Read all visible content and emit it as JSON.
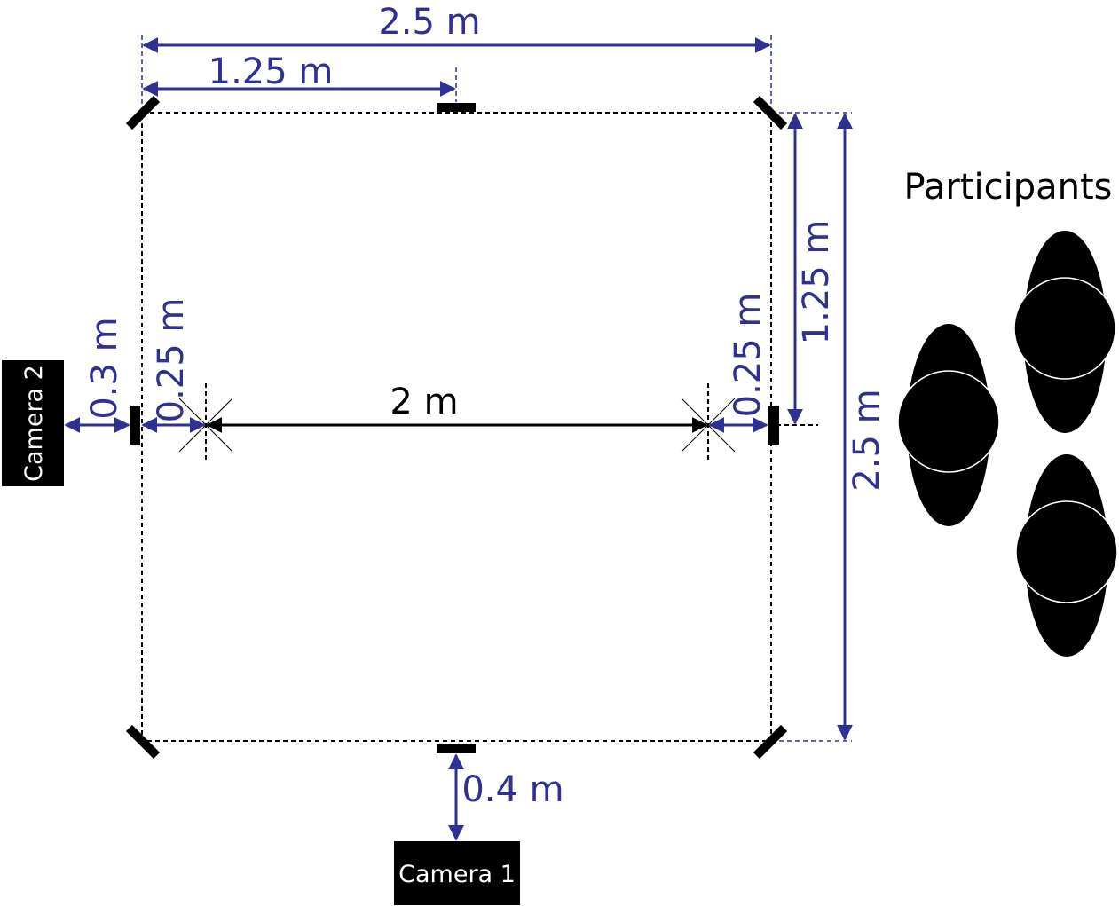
{
  "labels": {
    "participants": "Participants",
    "camera1": "Camera 1",
    "camera2": "Camera 2"
  },
  "dimensions": {
    "total_width": "2.5 m",
    "half_width": "1.25 m",
    "total_height": "2.5 m",
    "half_height": "1.25 m",
    "center_span": "2 m",
    "left_offset": "0.25 m",
    "right_offset": "0.25 m",
    "camera2_distance": "0.3 m",
    "camera1_distance": "0.4 m"
  },
  "colors": {
    "dimension": "#2e3192",
    "ink": "#000000",
    "background": "#ffffff"
  }
}
